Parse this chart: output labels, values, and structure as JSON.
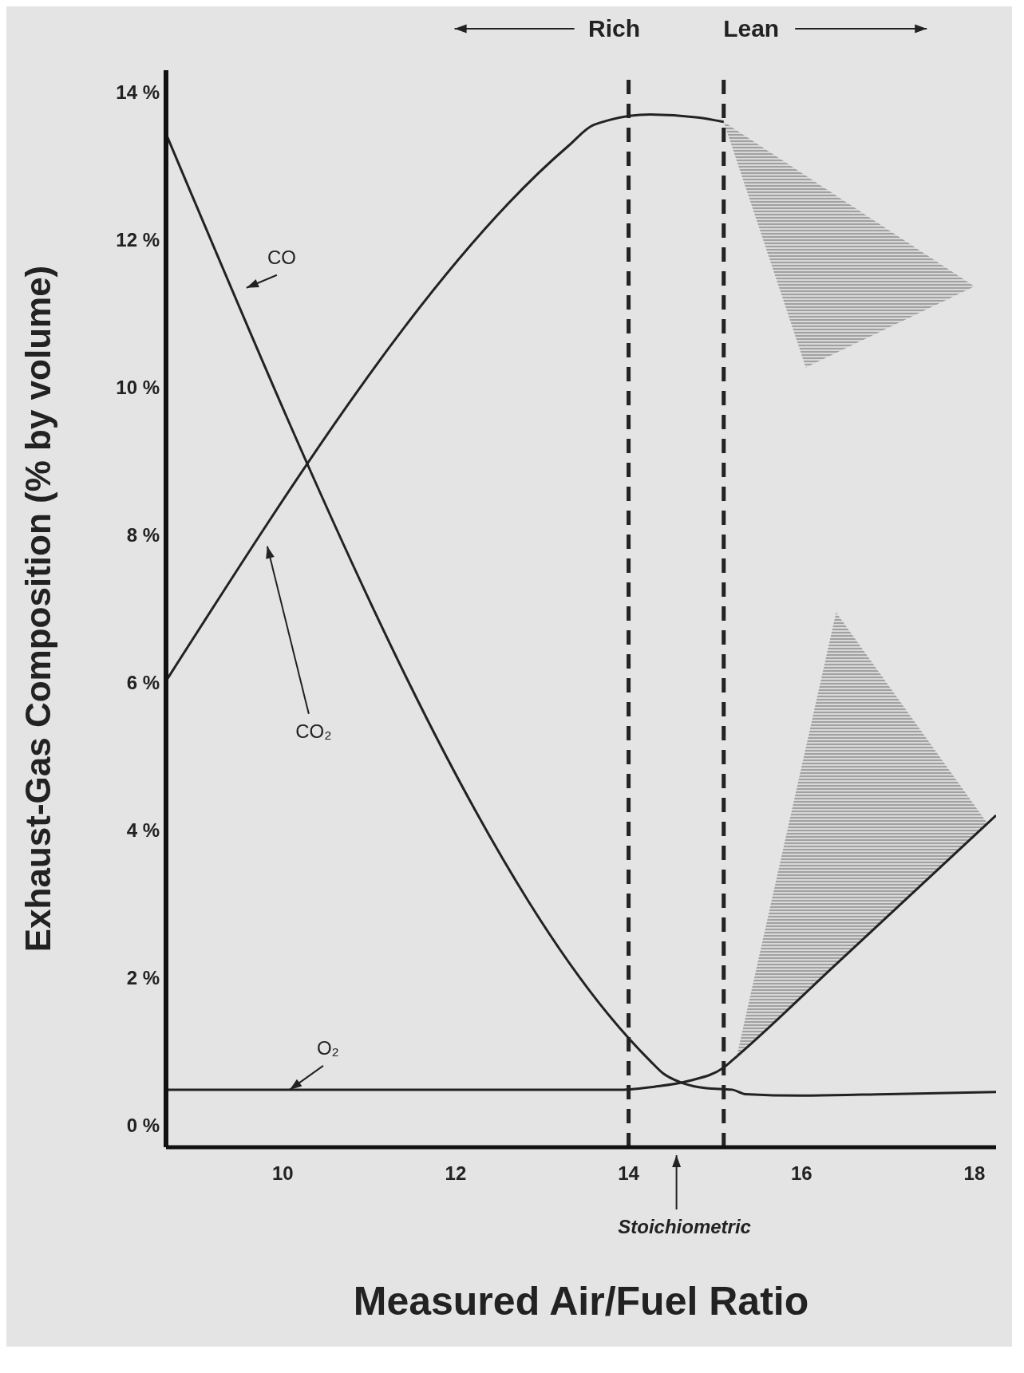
{
  "chart_data": {
    "type": "line",
    "xlabel": "Measured Air/Fuel Ratio",
    "ylabel": "Exhaust-Gas Composition (% by volume)",
    "xlim": [
      8.65,
      18.25
    ],
    "xticks": [
      10,
      12,
      14,
      16,
      18
    ],
    "ylim": [
      -0.3,
      14.3
    ],
    "yticks": [
      {
        "value": 0,
        "label": "0 %"
      },
      {
        "value": 2,
        "label": "2 %"
      },
      {
        "value": 4,
        "label": "4 %"
      },
      {
        "value": 6,
        "label": "6 %"
      },
      {
        "value": 8,
        "label": "8 %"
      },
      {
        "value": 10,
        "label": "10 %"
      },
      {
        "value": 12,
        "label": "12 %"
      },
      {
        "value": 14,
        "label": "14 %"
      }
    ],
    "grid": false,
    "legend": false,
    "marker": "none",
    "line_style": "solid",
    "series": [
      {
        "name": "CO",
        "color": "#222222",
        "x": [
          8.65,
          14.25,
          14.4,
          14.6,
          14.9,
          15.2,
          15.35,
          16,
          17,
          18.25
        ],
        "values": [
          13.44,
          0.87,
          0.7,
          0.58,
          0.5,
          0.48,
          0.42,
          0.4,
          0.42,
          0.45
        ]
      },
      {
        "name": "CO₂",
        "color": "#222222",
        "x": [
          8.65,
          13.3,
          13.6,
          14.25,
          14.8,
          15.1,
          16.05,
          18.0
        ],
        "values": [
          6.02,
          13.27,
          13.56,
          13.7,
          13.66,
          13.6,
          null,
          null
        ],
        "lower": [
          null,
          null,
          null,
          null,
          null,
          13.6,
          10.27,
          11.37
        ],
        "upper": [
          null,
          null,
          null,
          null,
          null,
          13.6,
          12.87,
          11.37
        ]
      },
      {
        "name": "O₂",
        "color": "#222222",
        "x": [
          8.65,
          13.9,
          14.3,
          14.7,
          15.1,
          15.25,
          16.4,
          18.15,
          18.25
        ],
        "values": [
          0.48,
          0.48,
          0.52,
          0.6,
          0.78,
          0.93,
          2.18,
          4.09,
          4.2
        ],
        "lower": [
          null,
          null,
          null,
          null,
          null,
          0.93,
          2.18,
          4.09,
          null
        ],
        "upper": [
          null,
          null,
          null,
          null,
          null,
          0.93,
          6.95,
          4.09,
          null
        ]
      }
    ],
    "ref_lines": [
      {
        "axis": "x",
        "value": 14.0,
        "line_style": "dashed",
        "color": "#222222"
      },
      {
        "axis": "x",
        "value": 15.1,
        "line_style": "dashed",
        "color": "#222222"
      }
    ],
    "annotations": [
      "Stoichiometric",
      "Rich",
      "Lean"
    ]
  }
}
